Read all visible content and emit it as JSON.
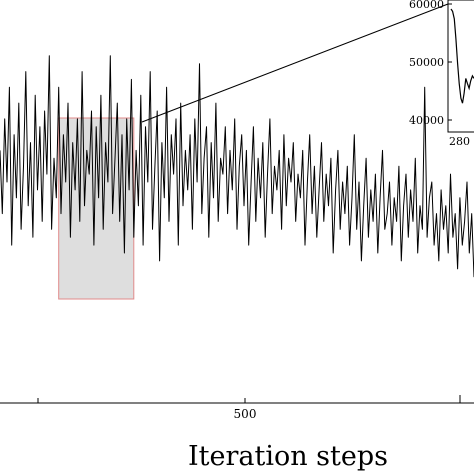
{
  "chart_data": {
    "type": "line",
    "xlabel": "Iteration steps",
    "x_ticks": [
      "500"
    ],
    "main_series_style": {
      "color": "#000000"
    },
    "highlight_box": {
      "fill": "#dedede",
      "stroke": "#e08a8a",
      "x_range": [
        75,
        235
      ]
    },
    "approx_x_range": [
      -50,
      960
    ],
    "y_range": [
      25000,
      70000
    ],
    "series": [
      {
        "x_start": -50,
        "x_step": 5,
        "values": [
          56000,
          48000,
          60000,
          52000,
          64000,
          44000,
          58000,
          50000,
          62000,
          46000,
          54000,
          66000,
          49000,
          57000,
          45000,
          63000,
          51000,
          59000,
          47000,
          61000,
          53000,
          68000,
          46000,
          55000,
          50000,
          64000,
          48000,
          58000,
          52000,
          62000,
          45000,
          57000,
          51000,
          60000,
          47000,
          66000,
          49000,
          56000,
          53000,
          61000,
          44000,
          59000,
          50000,
          63000,
          46000,
          57000,
          52000,
          68000,
          48000,
          55000,
          62000,
          47000,
          58000,
          43000,
          60000,
          51000,
          65000,
          45000,
          56000,
          49000,
          63000,
          44000,
          59000,
          52000,
          66000,
          46000,
          54000,
          61000,
          42000,
          57000,
          50000,
          64000,
          47000,
          58000,
          53000,
          60000,
          44000,
          62000,
          49000,
          56000,
          51000,
          58000,
          46000,
          60000,
          52000,
          67000,
          48000,
          55000,
          59000,
          45000,
          57000,
          50000,
          62000,
          47000,
          55000,
          53000,
          59000,
          48000,
          56000,
          51000,
          60000,
          46000,
          54000,
          58000,
          49000,
          56000,
          44000,
          52000,
          59000,
          47000,
          55000,
          50000,
          57000,
          45000,
          53000,
          60000,
          48000,
          54000,
          51000,
          56000,
          46000,
          58000,
          49000,
          55000,
          52000,
          57000,
          47000,
          53000,
          50000,
          56000,
          44000,
          52000,
          58000,
          48000,
          54000,
          45000,
          51000,
          57000,
          47000,
          53000,
          49000,
          55000,
          43000,
          51000,
          56000,
          46000,
          52000,
          48000,
          54000,
          44000,
          50000,
          58000,
          46000,
          52000,
          42000,
          49000,
          55000,
          45000,
          51000,
          47000,
          53000,
          43000,
          50000,
          56000,
          46000,
          48000,
          52000,
          44000,
          50000,
          47000,
          54000,
          42000,
          49000,
          53000,
          45000,
          51000,
          47000,
          55000,
          43000,
          49000,
          46000,
          64000,
          45000,
          50000,
          52000,
          44000,
          48000,
          42000,
          51000,
          46000,
          49000,
          43000,
          53000,
          45000,
          48000,
          41000,
          50000,
          44000,
          47000,
          52000,
          43000,
          48000,
          40000,
          46000,
          50000,
          38000,
          44000,
          47000,
          39000,
          45000
        ]
      }
    ],
    "inset": {
      "type": "line",
      "x_ticks": [
        "280"
      ],
      "y_ticks": [
        "40000",
        "50000",
        "60000"
      ],
      "y_range": [
        37000,
        62000
      ],
      "values": [
        61000,
        60500,
        59000,
        55000,
        50000,
        46000,
        43000,
        42000,
        44000,
        47000,
        46000,
        45000,
        46500,
        47500,
        47000
      ]
    }
  }
}
